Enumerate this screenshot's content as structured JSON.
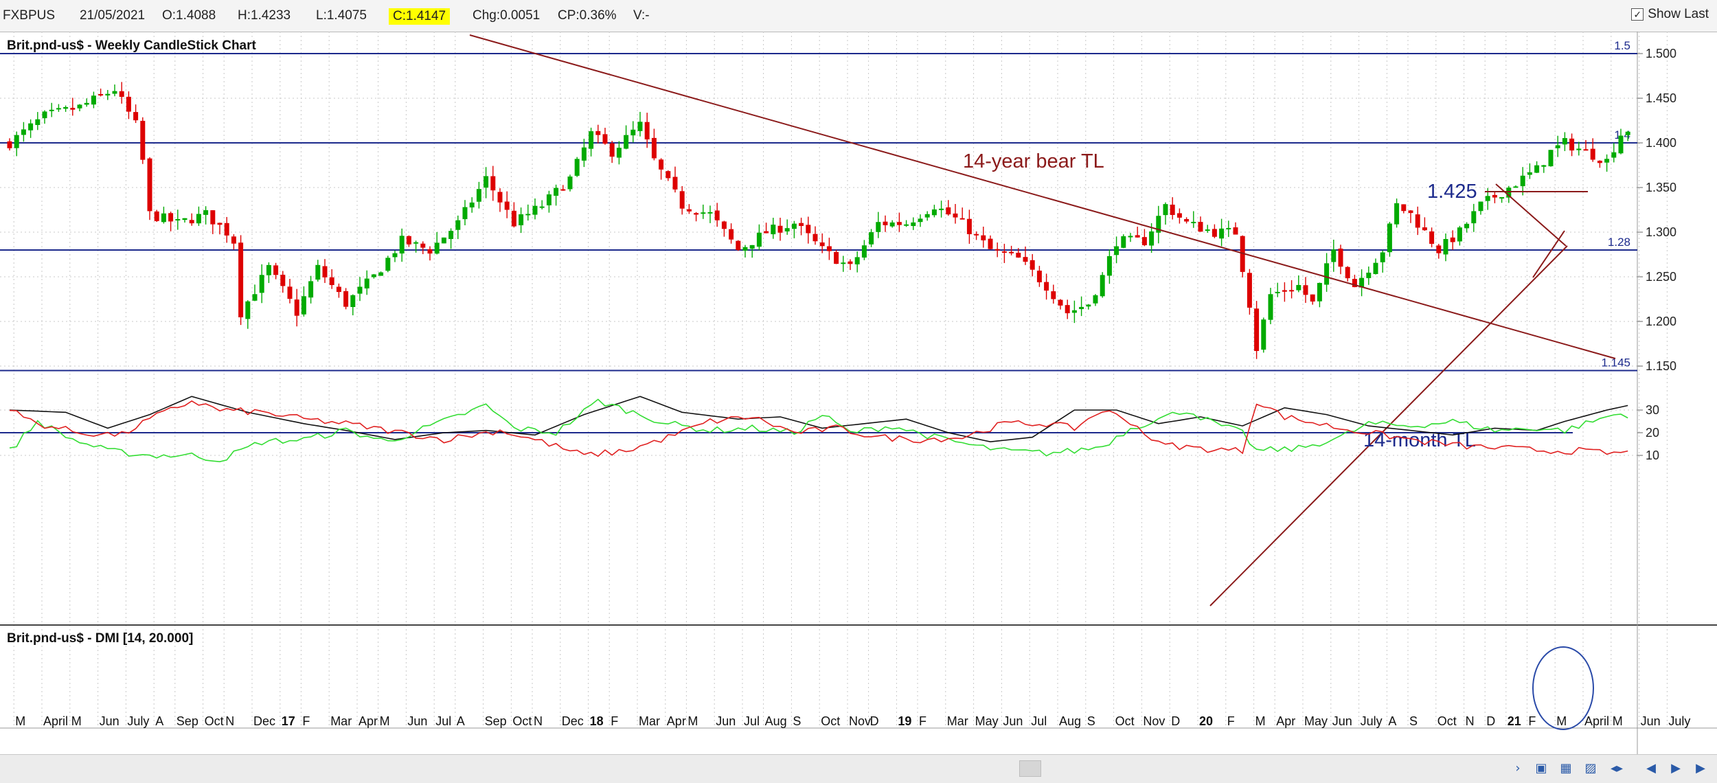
{
  "header": {
    "symbol": "FXBPUS",
    "date": "21/05/2021",
    "open": "O:1.4088",
    "high": "H:1.4233",
    "low": "L:1.4075",
    "close": "C:1.4147",
    "change": "Chg:0.0051",
    "change_pct": "CP:0.36%",
    "volume": "V:-",
    "show_last_label": "Show Last",
    "show_last_checked": true
  },
  "colors": {
    "up": "#00aa00",
    "down": "#dd0000",
    "hline": "#1c2a8c",
    "bear_tl": "#8b1a1a",
    "month_tl": "#8b1a1a",
    "dmi_plus": "#33dd33",
    "dmi_minus": "#e02020",
    "adx": "#111111"
  },
  "chart_data": [
    {
      "type": "candlestick",
      "title": "Brit.pnd-us$ - Weekly CandleStick Chart",
      "ylim": [
        1.11,
        1.55
      ],
      "yticks": [
        "1.500",
        "1.450",
        "1.400",
        "1.350",
        "1.300",
        "1.250",
        "1.200",
        "1.150"
      ],
      "levels": [
        {
          "value": 1.5,
          "label": "1.5"
        },
        {
          "value": 1.4,
          "label": "1.4"
        },
        {
          "value": 1.28,
          "label": "1.28"
        },
        {
          "value": 1.145,
          "label": "1.145"
        }
      ],
      "annotations": [
        {
          "text": "14-year bear TL"
        },
        {
          "text": "14-month TL"
        },
        {
          "text": "1.425"
        }
      ],
      "anchors": [
        {
          "i": 0,
          "c": 1.4
        },
        {
          "i": 5,
          "c": 1.43
        },
        {
          "i": 10,
          "c": 1.44
        },
        {
          "i": 15,
          "c": 1.46
        },
        {
          "i": 18,
          "c": 1.42
        },
        {
          "i": 19,
          "c": 1.38
        },
        {
          "i": 20,
          "c": 1.32
        },
        {
          "i": 24,
          "c": 1.31
        },
        {
          "i": 28,
          "c": 1.32
        },
        {
          "i": 31,
          "c": 1.3
        },
        {
          "i": 32,
          "c": 1.29
        },
        {
          "i": 33,
          "c": 1.21
        },
        {
          "i": 37,
          "c": 1.26
        },
        {
          "i": 41,
          "c": 1.21
        },
        {
          "i": 44,
          "c": 1.26
        },
        {
          "i": 48,
          "c": 1.22
        },
        {
          "i": 52,
          "c": 1.25
        },
        {
          "i": 56,
          "c": 1.29
        },
        {
          "i": 60,
          "c": 1.28
        },
        {
          "i": 64,
          "c": 1.31
        },
        {
          "i": 68,
          "c": 1.36
        },
        {
          "i": 72,
          "c": 1.31
        },
        {
          "i": 76,
          "c": 1.33
        },
        {
          "i": 80,
          "c": 1.36
        },
        {
          "i": 83,
          "c": 1.41
        },
        {
          "i": 86,
          "c": 1.39
        },
        {
          "i": 90,
          "c": 1.42
        },
        {
          "i": 92,
          "c": 1.38
        },
        {
          "i": 96,
          "c": 1.33
        },
        {
          "i": 100,
          "c": 1.32
        },
        {
          "i": 104,
          "c": 1.28
        },
        {
          "i": 108,
          "c": 1.3
        },
        {
          "i": 112,
          "c": 1.31
        },
        {
          "i": 116,
          "c": 1.28
        },
        {
          "i": 120,
          "c": 1.26
        },
        {
          "i": 124,
          "c": 1.31
        },
        {
          "i": 128,
          "c": 1.31
        },
        {
          "i": 132,
          "c": 1.33
        },
        {
          "i": 136,
          "c": 1.31
        },
        {
          "i": 140,
          "c": 1.28
        },
        {
          "i": 144,
          "c": 1.27
        },
        {
          "i": 148,
          "c": 1.24
        },
        {
          "i": 151,
          "c": 1.21
        },
        {
          "i": 154,
          "c": 1.22
        },
        {
          "i": 156,
          "c": 1.25
        },
        {
          "i": 158,
          "c": 1.29
        },
        {
          "i": 162,
          "c": 1.29
        },
        {
          "i": 165,
          "c": 1.33
        },
        {
          "i": 168,
          "c": 1.31
        },
        {
          "i": 172,
          "c": 1.3
        },
        {
          "i": 175,
          "c": 1.3
        },
        {
          "i": 177,
          "c": 1.22
        },
        {
          "i": 178,
          "c": 1.17
        },
        {
          "i": 180,
          "c": 1.23
        },
        {
          "i": 184,
          "c": 1.24
        },
        {
          "i": 186,
          "c": 1.22
        },
        {
          "i": 189,
          "c": 1.28
        },
        {
          "i": 192,
          "c": 1.24
        },
        {
          "i": 196,
          "c": 1.28
        },
        {
          "i": 198,
          "c": 1.33
        },
        {
          "i": 200,
          "c": 1.32
        },
        {
          "i": 202,
          "c": 1.3
        },
        {
          "i": 204,
          "c": 1.28
        },
        {
          "i": 207,
          "c": 1.3
        },
        {
          "i": 210,
          "c": 1.33
        },
        {
          "i": 214,
          "c": 1.35
        },
        {
          "i": 218,
          "c": 1.37
        },
        {
          "i": 220,
          "c": 1.39
        },
        {
          "i": 222,
          "c": 1.4
        },
        {
          "i": 225,
          "c": 1.39
        },
        {
          "i": 228,
          "c": 1.38
        },
        {
          "i": 230,
          "c": 1.41
        },
        {
          "i": 231,
          "c": 1.415
        }
      ],
      "x_labels": [
        {
          "i": 1,
          "t": "M"
        },
        {
          "i": 5,
          "t": "April"
        },
        {
          "i": 9,
          "t": "M"
        },
        {
          "i": 13,
          "t": "Jun"
        },
        {
          "i": 17,
          "t": "July"
        },
        {
          "i": 21,
          "t": "A"
        },
        {
          "i": 24,
          "t": "Sep"
        },
        {
          "i": 28,
          "t": "Oct"
        },
        {
          "i": 31,
          "t": "N"
        },
        {
          "i": 35,
          "t": "Dec"
        },
        {
          "i": 39,
          "t": "17"
        },
        {
          "i": 42,
          "t": "F"
        },
        {
          "i": 46,
          "t": "Mar"
        },
        {
          "i": 50,
          "t": "Apr"
        },
        {
          "i": 53,
          "t": "M"
        },
        {
          "i": 57,
          "t": "Jun"
        },
        {
          "i": 61,
          "t": "Jul"
        },
        {
          "i": 64,
          "t": "A"
        },
        {
          "i": 68,
          "t": "Sep"
        },
        {
          "i": 72,
          "t": "Oct"
        },
        {
          "i": 75,
          "t": "N"
        },
        {
          "i": 79,
          "t": "Dec"
        },
        {
          "i": 83,
          "t": "18"
        },
        {
          "i": 86,
          "t": "F"
        },
        {
          "i": 90,
          "t": "Mar"
        },
        {
          "i": 94,
          "t": "Apr"
        },
        {
          "i": 97,
          "t": "M"
        },
        {
          "i": 101,
          "t": "Jun"
        },
        {
          "i": 105,
          "t": "Jul"
        },
        {
          "i": 108,
          "t": "Aug"
        },
        {
          "i": 112,
          "t": "S"
        },
        {
          "i": 116,
          "t": "Oct"
        },
        {
          "i": 120,
          "t": "Nov"
        },
        {
          "i": 123,
          "t": "D"
        },
        {
          "i": 127,
          "t": "19"
        },
        {
          "i": 130,
          "t": "F"
        },
        {
          "i": 134,
          "t": "Mar"
        },
        {
          "i": 138,
          "t": "May"
        },
        {
          "i": 142,
          "t": "Jun"
        },
        {
          "i": 146,
          "t": "Jul"
        },
        {
          "i": 150,
          "t": "Aug"
        },
        {
          "i": 154,
          "t": "S"
        },
        {
          "i": 158,
          "t": "Oct"
        },
        {
          "i": 162,
          "t": "Nov"
        },
        {
          "i": 166,
          "t": "D"
        },
        {
          "i": 170,
          "t": "20"
        },
        {
          "i": 174,
          "t": "F"
        },
        {
          "i": 178,
          "t": "M"
        },
        {
          "i": 181,
          "t": "Apr"
        },
        {
          "i": 185,
          "t": "May"
        },
        {
          "i": 189,
          "t": "Jun"
        },
        {
          "i": 193,
          "t": "July"
        },
        {
          "i": 197,
          "t": "A"
        },
        {
          "i": 200,
          "t": "S"
        },
        {
          "i": 204,
          "t": "Oct"
        },
        {
          "i": 208,
          "t": "N"
        },
        {
          "i": 211,
          "t": "D"
        },
        {
          "i": 214,
          "t": "21"
        },
        {
          "i": 217,
          "t": "F"
        },
        {
          "i": 221,
          "t": "M"
        },
        {
          "i": 225,
          "t": "April"
        },
        {
          "i": 229,
          "t": "M"
        },
        {
          "i": 233,
          "t": "Jun"
        },
        {
          "i": 237,
          "t": "July"
        }
      ]
    },
    {
      "type": "line",
      "title": "Brit.pnd-us$ - DMI [14, 20.000]",
      "ylim": [
        6,
        36
      ],
      "yticks": [
        "30",
        "20",
        "10"
      ],
      "level": 20,
      "series": [
        {
          "key": "adx",
          "anchors": [
            [
              0,
              30
            ],
            [
              8,
              29
            ],
            [
              14,
              22
            ],
            [
              20,
              28
            ],
            [
              26,
              36
            ],
            [
              34,
              29
            ],
            [
              42,
              24
            ],
            [
              48,
              21
            ],
            [
              55,
              17
            ],
            [
              62,
              20
            ],
            [
              68,
              21
            ],
            [
              75,
              19
            ],
            [
              82,
              28
            ],
            [
              90,
              36
            ],
            [
              96,
              29
            ],
            [
              104,
              26
            ],
            [
              110,
              27
            ],
            [
              116,
              22
            ],
            [
              122,
              24
            ],
            [
              128,
              26
            ],
            [
              134,
              20
            ],
            [
              140,
              16
            ],
            [
              146,
              18
            ],
            [
              152,
              30
            ],
            [
              158,
              30
            ],
            [
              164,
              24
            ],
            [
              170,
              27
            ],
            [
              176,
              23
            ],
            [
              182,
              31
            ],
            [
              188,
              28
            ],
            [
              194,
              23
            ],
            [
              200,
              21
            ],
            [
              206,
              19
            ],
            [
              212,
              22
            ],
            [
              218,
              21
            ],
            [
              222,
              25
            ],
            [
              228,
              30
            ],
            [
              231,
              32
            ]
          ]
        },
        {
          "key": "plus",
          "anchors": [
            [
              0,
              12
            ],
            [
              4,
              25
            ],
            [
              9,
              17
            ],
            [
              14,
              12
            ],
            [
              20,
              10
            ],
            [
              26,
              10
            ],
            [
              30,
              8
            ],
            [
              36,
              16
            ],
            [
              42,
              17
            ],
            [
              48,
              21
            ],
            [
              54,
              16
            ],
            [
              62,
              25
            ],
            [
              68,
              32
            ],
            [
              72,
              22
            ],
            [
              78,
              20
            ],
            [
              84,
              34
            ],
            [
              88,
              30
            ],
            [
              94,
              24
            ],
            [
              100,
              21
            ],
            [
              106,
              22
            ],
            [
              112,
              20
            ],
            [
              116,
              28
            ],
            [
              120,
              20
            ],
            [
              126,
              23
            ],
            [
              132,
              18
            ],
            [
              138,
              14
            ],
            [
              142,
              12
            ],
            [
              148,
              11
            ],
            [
              152,
              12
            ],
            [
              156,
              14
            ],
            [
              160,
              22
            ],
            [
              164,
              26
            ],
            [
              168,
              30
            ],
            [
              172,
              24
            ],
            [
              176,
              20
            ],
            [
              178,
              12
            ],
            [
              184,
              13
            ],
            [
              190,
              18
            ],
            [
              194,
              24
            ],
            [
              200,
              23
            ],
            [
              206,
              25
            ],
            [
              212,
              21
            ],
            [
              218,
              22
            ],
            [
              222,
              21
            ],
            [
              226,
              25
            ],
            [
              229,
              28
            ],
            [
              231,
              28
            ]
          ]
        },
        {
          "key": "minus",
          "anchors": [
            [
              0,
              30
            ],
            [
              4,
              24
            ],
            [
              10,
              20
            ],
            [
              16,
              19
            ],
            [
              20,
              26
            ],
            [
              26,
              34
            ],
            [
              30,
              30
            ],
            [
              36,
              29
            ],
            [
              42,
              26
            ],
            [
              48,
              24
            ],
            [
              54,
              21
            ],
            [
              62,
              17
            ],
            [
              66,
              19
            ],
            [
              70,
              21
            ],
            [
              76,
              16
            ],
            [
              82,
              10
            ],
            [
              88,
              12
            ],
            [
              94,
              18
            ],
            [
              100,
              25
            ],
            [
              106,
              27
            ],
            [
              112,
              20
            ],
            [
              118,
              22
            ],
            [
              124,
              18
            ],
            [
              130,
              17
            ],
            [
              136,
              18
            ],
            [
              142,
              24
            ],
            [
              148,
              24
            ],
            [
              152,
              22
            ],
            [
              156,
              30
            ],
            [
              160,
              25
            ],
            [
              164,
              15
            ],
            [
              170,
              13
            ],
            [
              176,
              12
            ],
            [
              178,
              34
            ],
            [
              182,
              27
            ],
            [
              190,
              22
            ],
            [
              196,
              19
            ],
            [
              202,
              16
            ],
            [
              208,
              14
            ],
            [
              214,
              13
            ],
            [
              220,
              12
            ],
            [
              224,
              12
            ],
            [
              228,
              11
            ],
            [
              231,
              11
            ]
          ]
        }
      ]
    }
  ]
}
